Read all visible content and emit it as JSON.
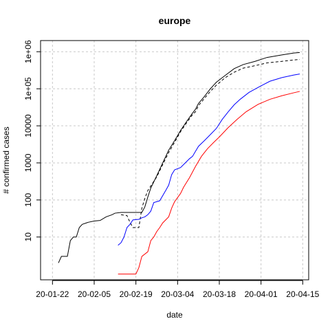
{
  "chart_data": {
    "type": "line",
    "title": "europe",
    "xlabel": "date",
    "ylabel": "# confirmed cases",
    "y_scale": "log",
    "ylim": [
      0.7,
      2000000
    ],
    "xlim": [
      "2020-01-18",
      "2020-04-17"
    ],
    "grid": true,
    "x_ticks": [
      "2020-01-22",
      "2020-02-05",
      "2020-02-19",
      "2020-03-04",
      "2020-03-18",
      "2020-04-01",
      "2020-04-15"
    ],
    "x_tick_labels": [
      "20-01-22",
      "20-02-05",
      "20-02-19",
      "20-03-04",
      "20-03-18",
      "20-04-01",
      "20-04-15"
    ],
    "y_ticks": [
      10,
      100,
      1000,
      10000,
      100000,
      1000000
    ],
    "y_tick_labels": [
      "10",
      "100",
      "1000",
      "10000",
      "1e+05",
      "1e+06"
    ],
    "series": [
      {
        "color": "#000000",
        "dash": "solid",
        "points": [
          [
            "2020-01-24",
            2
          ],
          [
            "2020-01-25",
            3
          ],
          [
            "2020-01-27",
            3
          ],
          [
            "2020-01-28",
            8
          ],
          [
            "2020-01-29",
            10
          ],
          [
            "2020-01-30",
            10
          ],
          [
            "2020-01-31",
            18
          ],
          [
            "2020-02-01",
            22
          ],
          [
            "2020-02-03",
            25
          ],
          [
            "2020-02-05",
            27
          ],
          [
            "2020-02-07",
            28
          ],
          [
            "2020-02-09",
            35
          ],
          [
            "2020-02-11",
            40
          ],
          [
            "2020-02-12",
            44
          ],
          [
            "2020-02-14",
            46
          ],
          [
            "2020-02-17",
            46
          ],
          [
            "2020-02-21",
            46
          ],
          [
            "2020-02-22",
            65
          ],
          [
            "2020-02-23",
            120
          ],
          [
            "2020-02-24",
            210
          ],
          [
            "2020-02-26",
            450
          ],
          [
            "2020-02-28",
            1000
          ],
          [
            "2020-03-01",
            2200
          ],
          [
            "2020-03-03",
            4000
          ],
          [
            "2020-03-05",
            7500
          ],
          [
            "2020-03-07",
            13000
          ],
          [
            "2020-03-09",
            22000
          ],
          [
            "2020-03-10",
            28000
          ],
          [
            "2020-03-11",
            40000
          ],
          [
            "2020-03-13",
            62000
          ],
          [
            "2020-03-15",
            100000
          ],
          [
            "2020-03-17",
            150000
          ],
          [
            "2020-03-20",
            230000
          ],
          [
            "2020-03-23",
            350000
          ],
          [
            "2020-03-26",
            450000
          ],
          [
            "2020-03-30",
            550000
          ],
          [
            "2020-04-03",
            700000
          ],
          [
            "2020-04-08",
            820000
          ],
          [
            "2020-04-12",
            920000
          ],
          [
            "2020-04-14",
            950000
          ]
        ]
      },
      {
        "color": "#000000",
        "dash": "dashed",
        "points": [
          [
            "2020-02-14",
            40
          ],
          [
            "2020-02-16",
            38
          ],
          [
            "2020-02-17",
            25
          ],
          [
            "2020-02-18",
            18
          ],
          [
            "2020-02-20",
            18
          ],
          [
            "2020-02-21",
            60
          ],
          [
            "2020-02-22",
            110
          ],
          [
            "2020-02-23",
            180
          ],
          [
            "2020-02-26",
            420
          ],
          [
            "2020-02-28",
            900
          ],
          [
            "2020-03-01",
            1900
          ],
          [
            "2020-03-03",
            3600
          ],
          [
            "2020-03-05",
            7000
          ],
          [
            "2020-03-07",
            12000
          ],
          [
            "2020-03-09",
            20000
          ],
          [
            "2020-03-10",
            24000
          ],
          [
            "2020-03-11",
            35000
          ],
          [
            "2020-03-13",
            55000
          ],
          [
            "2020-03-15",
            85000
          ],
          [
            "2020-03-17",
            125000
          ],
          [
            "2020-03-20",
            200000
          ],
          [
            "2020-03-23",
            280000
          ],
          [
            "2020-03-26",
            360000
          ],
          [
            "2020-03-30",
            420000
          ],
          [
            "2020-04-03",
            500000
          ],
          [
            "2020-04-08",
            550000
          ],
          [
            "2020-04-12",
            600000
          ],
          [
            "2020-04-14",
            620000
          ]
        ]
      },
      {
        "color": "#0000ff",
        "dash": "solid",
        "points": [
          [
            "2020-02-13",
            6
          ],
          [
            "2020-02-14",
            7
          ],
          [
            "2020-02-15",
            10
          ],
          [
            "2020-02-16",
            18
          ],
          [
            "2020-02-17",
            22
          ],
          [
            "2020-02-18",
            29
          ],
          [
            "2020-02-20",
            30
          ],
          [
            "2020-02-21",
            33
          ],
          [
            "2020-02-22",
            35
          ],
          [
            "2020-02-23",
            40
          ],
          [
            "2020-02-24",
            50
          ],
          [
            "2020-02-25",
            85
          ],
          [
            "2020-02-27",
            95
          ],
          [
            "2020-02-29",
            180
          ],
          [
            "2020-03-01",
            250
          ],
          [
            "2020-03-02",
            480
          ],
          [
            "2020-03-03",
            650
          ],
          [
            "2020-03-05",
            750
          ],
          [
            "2020-03-06",
            900
          ],
          [
            "2020-03-08",
            1300
          ],
          [
            "2020-03-09",
            1500
          ],
          [
            "2020-03-11",
            2800
          ],
          [
            "2020-03-13",
            4000
          ],
          [
            "2020-03-15",
            5800
          ],
          [
            "2020-03-17",
            8500
          ],
          [
            "2020-03-19",
            15000
          ],
          [
            "2020-03-21",
            24000
          ],
          [
            "2020-03-23",
            37000
          ],
          [
            "2020-03-25",
            52000
          ],
          [
            "2020-03-28",
            80000
          ],
          [
            "2020-04-01",
            120000
          ],
          [
            "2020-04-04",
            160000
          ],
          [
            "2020-04-08",
            200000
          ],
          [
            "2020-04-12",
            235000
          ],
          [
            "2020-04-14",
            250000
          ]
        ]
      },
      {
        "color": "#ff0000",
        "dash": "solid",
        "points": [
          [
            "2020-02-13",
            1
          ],
          [
            "2020-02-19",
            1
          ],
          [
            "2020-02-20",
            1.5
          ],
          [
            "2020-02-21",
            3
          ],
          [
            "2020-02-23",
            4
          ],
          [
            "2020-02-24",
            8
          ],
          [
            "2020-02-25",
            10
          ],
          [
            "2020-02-26",
            14
          ],
          [
            "2020-02-27",
            18
          ],
          [
            "2020-02-28",
            24
          ],
          [
            "2020-03-01",
            35
          ],
          [
            "2020-03-02",
            60
          ],
          [
            "2020-03-03",
            90
          ],
          [
            "2020-03-05",
            150
          ],
          [
            "2020-03-06",
            220
          ],
          [
            "2020-03-08",
            400
          ],
          [
            "2020-03-10",
            800
          ],
          [
            "2020-03-12",
            1500
          ],
          [
            "2020-03-14",
            2400
          ],
          [
            "2020-03-16",
            3500
          ],
          [
            "2020-03-18",
            5000
          ],
          [
            "2020-03-21",
            9000
          ],
          [
            "2020-03-24",
            15000
          ],
          [
            "2020-03-27",
            24000
          ],
          [
            "2020-03-31",
            38000
          ],
          [
            "2020-04-04",
            52000
          ],
          [
            "2020-04-08",
            65000
          ],
          [
            "2020-04-12",
            78000
          ],
          [
            "2020-04-14",
            85000
          ]
        ]
      }
    ]
  }
}
